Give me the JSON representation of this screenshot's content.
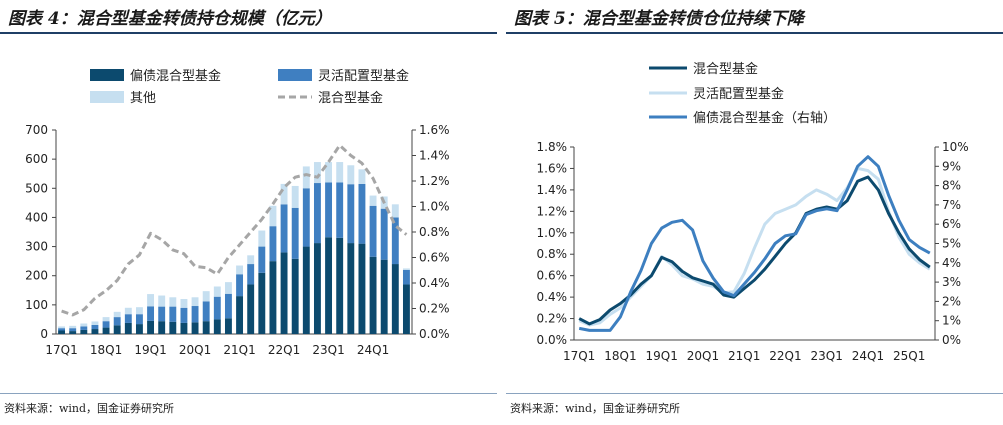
{
  "source_text": "资料来源：wind，国金证券研究所",
  "chart_data": [
    {
      "type": "bar",
      "title": "图表 4：混合型基金转债持仓规模（亿元）",
      "stacked": true,
      "categories": [
        "17Q1",
        "17Q2",
        "17Q3",
        "17Q4",
        "18Q1",
        "18Q2",
        "18Q3",
        "18Q4",
        "19Q1",
        "19Q2",
        "19Q3",
        "19Q4",
        "20Q1",
        "20Q2",
        "20Q3",
        "20Q4",
        "21Q1",
        "21Q2",
        "21Q3",
        "21Q4",
        "22Q1",
        "22Q2",
        "22Q3",
        "22Q4",
        "23Q1",
        "23Q2",
        "23Q3",
        "23Q4",
        "24Q1",
        "24Q2",
        "24Q3",
        "24Q4"
      ],
      "x_tick_labels": [
        "17Q1",
        "18Q1",
        "19Q1",
        "20Q1",
        "21Q1",
        "22Q1",
        "23Q1",
        "24Q1"
      ],
      "y_left_ticks": [
        "0",
        "100",
        "200",
        "300",
        "400",
        "500",
        "600",
        "700"
      ],
      "y_right_ticks": [
        "0.0%",
        "0.2%",
        "0.4%",
        "0.6%",
        "0.8%",
        "1.0%",
        "1.2%",
        "1.4%",
        "1.6%"
      ],
      "ylim_left": [
        0,
        700
      ],
      "ylim_right": [
        0,
        1.6
      ],
      "series": [
        {
          "name": "偏债混合型基金",
          "axis": "left",
          "color": "#0c4a6e",
          "values": [
            12,
            10,
            14,
            17,
            22,
            30,
            38,
            34,
            45,
            44,
            42,
            38,
            40,
            44,
            50,
            54,
            130,
            170,
            210,
            250,
            280,
            258,
            300,
            312,
            332,
            330,
            312,
            310,
            265,
            255,
            240,
            170
          ]
        },
        {
          "name": "灵活配置型基金",
          "axis": "left",
          "color": "#3f7fc1",
          "values": [
            8,
            10,
            12,
            14,
            22,
            28,
            30,
            34,
            50,
            50,
            52,
            52,
            56,
            68,
            78,
            84,
            75,
            70,
            90,
            120,
            165,
            175,
            200,
            206,
            188,
            190,
            202,
            205,
            175,
            175,
            160,
            50
          ]
        },
        {
          "name": "其他",
          "axis": "left",
          "color": "#c6dff0",
          "values": [
            6,
            8,
            10,
            12,
            14,
            18,
            22,
            24,
            42,
            38,
            32,
            30,
            30,
            35,
            35,
            40,
            30,
            30,
            55,
            70,
            70,
            75,
            75,
            72,
            70,
            70,
            65,
            50,
            35,
            42,
            45,
            5
          ]
        },
        {
          "name": "混合型基金",
          "axis": "right",
          "type": "line",
          "style": "dashed",
          "color": "#a6a6a6",
          "values": [
            0.18,
            0.15,
            0.19,
            0.28,
            0.34,
            0.42,
            0.55,
            0.62,
            0.79,
            0.74,
            0.66,
            0.63,
            0.53,
            0.52,
            0.47,
            0.6,
            0.7,
            0.8,
            0.9,
            1.02,
            1.15,
            1.23,
            1.25,
            1.23,
            1.35,
            1.48,
            1.4,
            1.34,
            1.22,
            1.03,
            0.85,
            0.78
          ]
        }
      ],
      "legend": [
        {
          "label": "偏债混合型基金",
          "kind": "box",
          "color": "#0c4a6e"
        },
        {
          "label": "灵活配置型基金",
          "kind": "box",
          "color": "#3f7fc1"
        },
        {
          "label": "其他",
          "kind": "box",
          "color": "#c6dff0"
        },
        {
          "label": "混合型基金",
          "kind": "dash",
          "color": "#a6a6a6"
        }
      ]
    },
    {
      "type": "line",
      "title": "图表 5：混合型基金转债仓位持续下降",
      "categories": [
        "17Q1",
        "17Q2",
        "17Q3",
        "17Q4",
        "18Q1",
        "18Q2",
        "18Q3",
        "18Q4",
        "19Q1",
        "19Q2",
        "19Q3",
        "19Q4",
        "20Q1",
        "20Q2",
        "20Q3",
        "20Q4",
        "21Q1",
        "21Q2",
        "21Q3",
        "21Q4",
        "22Q1",
        "22Q2",
        "22Q3",
        "22Q4",
        "23Q1",
        "23Q2",
        "23Q3",
        "23Q4",
        "24Q1",
        "24Q2",
        "24Q3",
        "24Q4",
        "25Q1",
        "25Q2",
        "25Q3"
      ],
      "x_tick_labels": [
        "17Q1",
        "18Q1",
        "19Q1",
        "20Q1",
        "21Q1",
        "22Q1",
        "23Q1",
        "24Q1",
        "25Q1"
      ],
      "y_left_ticks": [
        "0.0%",
        "0.2%",
        "0.4%",
        "0.6%",
        "0.8%",
        "1.0%",
        "1.2%",
        "1.4%",
        "1.6%",
        "1.8%"
      ],
      "y_right_ticks": [
        "0%",
        "1%",
        "2%",
        "3%",
        "4%",
        "5%",
        "6%",
        "7%",
        "8%",
        "9%",
        "10%"
      ],
      "ylim_left": [
        0,
        1.8
      ],
      "ylim_right": [
        0,
        10
      ],
      "series": [
        {
          "name": "混合型基金",
          "axis": "left",
          "color": "#0c4a6e",
          "values": [
            0.2,
            0.15,
            0.19,
            0.28,
            0.34,
            0.42,
            0.52,
            0.6,
            0.77,
            0.73,
            0.64,
            0.58,
            0.55,
            0.52,
            0.42,
            0.4,
            0.48,
            0.56,
            0.66,
            0.78,
            0.9,
            1.0,
            1.18,
            1.22,
            1.24,
            1.22,
            1.3,
            1.48,
            1.52,
            1.4,
            1.18,
            1.0,
            0.85,
            0.75,
            0.68
          ]
        },
        {
          "name": "灵活配置型基金",
          "axis": "left",
          "color": "#c6dff0",
          "values": [
            0.18,
            0.14,
            0.16,
            0.24,
            0.3,
            0.4,
            0.5,
            0.6,
            0.78,
            0.7,
            0.6,
            0.57,
            0.52,
            0.5,
            0.44,
            0.45,
            0.62,
            0.86,
            1.08,
            1.18,
            1.22,
            1.26,
            1.34,
            1.4,
            1.36,
            1.3,
            1.42,
            1.6,
            1.58,
            1.5,
            1.2,
            0.96,
            0.8,
            0.72,
            0.66
          ]
        },
        {
          "name": "偏债混合型基金（右轴）",
          "axis": "right",
          "color": "#3d7fc0",
          "values": [
            0.6,
            0.5,
            0.5,
            0.5,
            1.2,
            2.5,
            3.6,
            5.0,
            5.8,
            6.1,
            6.2,
            5.7,
            4.1,
            3.2,
            2.5,
            2.3,
            2.9,
            3.5,
            4.2,
            5.0,
            5.4,
            5.5,
            6.5,
            6.7,
            6.8,
            6.7,
            7.8,
            9.0,
            9.5,
            9.0,
            7.5,
            6.2,
            5.2,
            4.8,
            4.5
          ]
        }
      ],
      "legend": [
        {
          "label": "混合型基金",
          "color": "#0c4a6e"
        },
        {
          "label": "灵活配置型基金",
          "color": "#c6dff0"
        },
        {
          "label": "偏债混合型基金（右轴）",
          "color": "#3d7fc0"
        }
      ]
    }
  ]
}
